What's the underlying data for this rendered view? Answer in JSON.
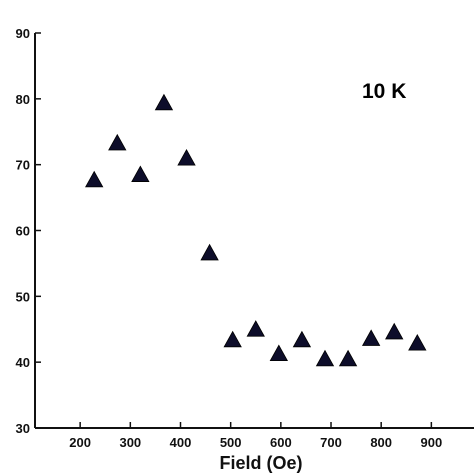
{
  "chart_data": {
    "type": "scatter",
    "marker": "triangle",
    "marker_color": "#0d0d2a",
    "axis_color": "#111111",
    "xlabel": "Field (Oe)",
    "ylabel": "",
    "xlim": [
      110,
      985
    ],
    "ylim": [
      30,
      90
    ],
    "xticks": [
      200,
      300,
      400,
      500,
      600,
      700,
      800,
      900
    ],
    "yticks": [
      30,
      40,
      50,
      60,
      70,
      80,
      90
    ],
    "annotation": "10 K",
    "grid": false,
    "series": [
      {
        "x": [
          228,
          274,
          320,
          367,
          412,
          458,
          504,
          550,
          596,
          642,
          688,
          734,
          780,
          826,
          872
        ],
        "y": [
          67.6,
          73.2,
          68.4,
          79.3,
          70.9,
          56.5,
          43.3,
          44.9,
          41.2,
          43.3,
          40.4,
          40.4,
          43.5,
          44.5,
          42.8
        ]
      }
    ]
  }
}
